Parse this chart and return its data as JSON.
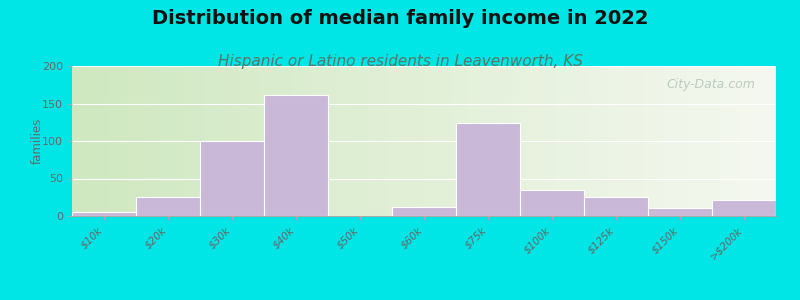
{
  "title": "Distribution of median family income in 2022",
  "subtitle": "Hispanic or Latino residents in Leavenworth, KS",
  "ylabel": "families",
  "categories": [
    "$10k",
    "$20k",
    "$30k",
    "$40k",
    "$50k",
    "$60k",
    "$75k",
    "$100k",
    "$125k",
    "$150k",
    ">$200k"
  ],
  "values": [
    5,
    25,
    100,
    162,
    0,
    12,
    124,
    35,
    26,
    11,
    21
  ],
  "bar_color": "#c9b8d8",
  "background_outer": "#00e5e5",
  "background_plot_left": "#cfe8c0",
  "background_plot_right": "#f0f5ee",
  "ylim": [
    0,
    200
  ],
  "yticks": [
    0,
    50,
    100,
    150,
    200
  ],
  "title_fontsize": 14,
  "subtitle_fontsize": 11,
  "subtitle_color": "#557766",
  "watermark_text": "City-Data.com",
  "watermark_color": "#b0c4b8",
  "tick_color": "#666666"
}
